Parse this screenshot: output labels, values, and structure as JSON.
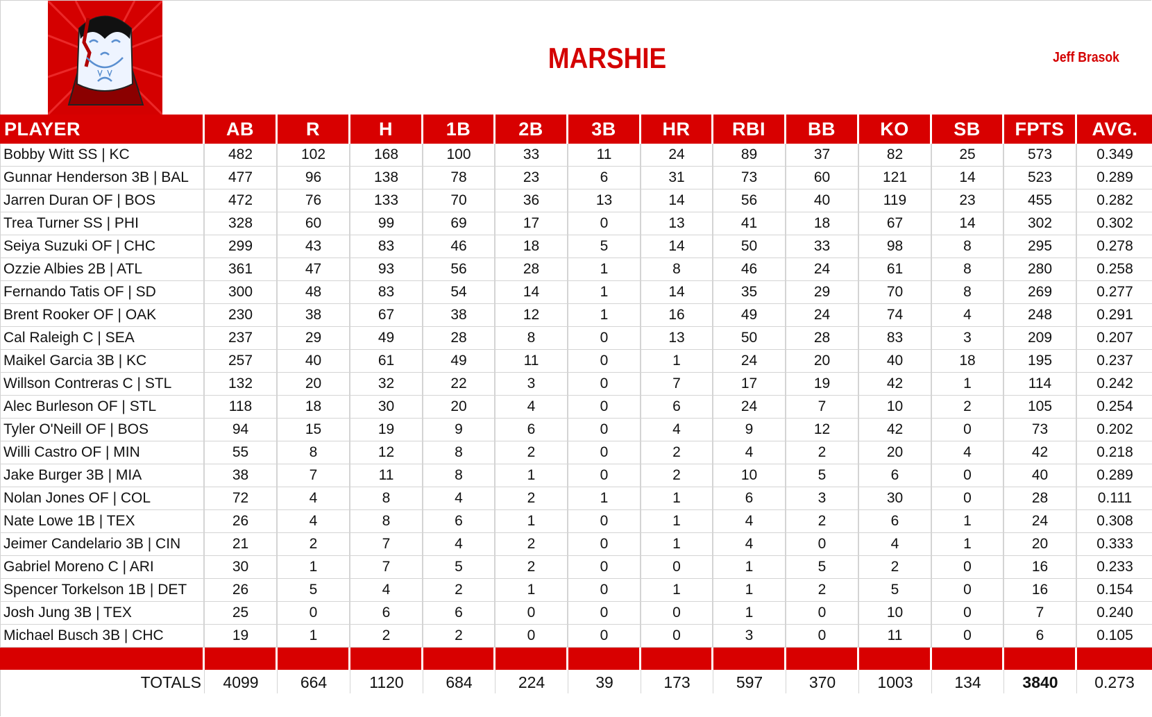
{
  "header": {
    "team_name": "MARSHIE",
    "owner_name": "Jeff Brasok",
    "logo_icon": "vampire-mascot-icon"
  },
  "colors": {
    "accent_red": "#d80000",
    "title_red": "#d40000",
    "grid_gray": "#d4d4d4"
  },
  "table": {
    "columns": [
      "PLAYER",
      "AB",
      "R",
      "H",
      "1B",
      "2B",
      "3B",
      "HR",
      "RBI",
      "BB",
      "KO",
      "SB",
      "FPTS",
      "AVG."
    ],
    "rows": [
      [
        "Bobby Witt SS | KC",
        "482",
        "102",
        "168",
        "100",
        "33",
        "11",
        "24",
        "89",
        "37",
        "82",
        "25",
        "573",
        "0.349"
      ],
      [
        "Gunnar Henderson 3B | BAL",
        "477",
        "96",
        "138",
        "78",
        "23",
        "6",
        "31",
        "73",
        "60",
        "121",
        "14",
        "523",
        "0.289"
      ],
      [
        "Jarren Duran OF | BOS",
        "472",
        "76",
        "133",
        "70",
        "36",
        "13",
        "14",
        "56",
        "40",
        "119",
        "23",
        "455",
        "0.282"
      ],
      [
        "Trea Turner SS | PHI",
        "328",
        "60",
        "99",
        "69",
        "17",
        "0",
        "13",
        "41",
        "18",
        "67",
        "14",
        "302",
        "0.302"
      ],
      [
        "Seiya Suzuki OF | CHC",
        "299",
        "43",
        "83",
        "46",
        "18",
        "5",
        "14",
        "50",
        "33",
        "98",
        "8",
        "295",
        "0.278"
      ],
      [
        "Ozzie Albies 2B | ATL",
        "361",
        "47",
        "93",
        "56",
        "28",
        "1",
        "8",
        "46",
        "24",
        "61",
        "8",
        "280",
        "0.258"
      ],
      [
        "Fernando Tatis OF | SD",
        "300",
        "48",
        "83",
        "54",
        "14",
        "1",
        "14",
        "35",
        "29",
        "70",
        "8",
        "269",
        "0.277"
      ],
      [
        "Brent Rooker OF | OAK",
        "230",
        "38",
        "67",
        "38",
        "12",
        "1",
        "16",
        "49",
        "24",
        "74",
        "4",
        "248",
        "0.291"
      ],
      [
        "Cal Raleigh C | SEA",
        "237",
        "29",
        "49",
        "28",
        "8",
        "0",
        "13",
        "50",
        "28",
        "83",
        "3",
        "209",
        "0.207"
      ],
      [
        "Maikel Garcia 3B | KC",
        "257",
        "40",
        "61",
        "49",
        "11",
        "0",
        "1",
        "24",
        "20",
        "40",
        "18",
        "195",
        "0.237"
      ],
      [
        "Willson Contreras C | STL",
        "132",
        "20",
        "32",
        "22",
        "3",
        "0",
        "7",
        "17",
        "19",
        "42",
        "1",
        "114",
        "0.242"
      ],
      [
        "Alec Burleson OF | STL",
        "118",
        "18",
        "30",
        "20",
        "4",
        "0",
        "6",
        "24",
        "7",
        "10",
        "2",
        "105",
        "0.254"
      ],
      [
        "Tyler O'Neill OF | BOS",
        "94",
        "15",
        "19",
        "9",
        "6",
        "0",
        "4",
        "9",
        "12",
        "42",
        "0",
        "73",
        "0.202"
      ],
      [
        "Willi Castro OF | MIN",
        "55",
        "8",
        "12",
        "8",
        "2",
        "0",
        "2",
        "4",
        "2",
        "20",
        "4",
        "42",
        "0.218"
      ],
      [
        "Jake Burger 3B | MIA",
        "38",
        "7",
        "11",
        "8",
        "1",
        "0",
        "2",
        "10",
        "5",
        "6",
        "0",
        "40",
        "0.289"
      ],
      [
        "Nolan Jones OF | COL",
        "72",
        "4",
        "8",
        "4",
        "2",
        "1",
        "1",
        "6",
        "3",
        "30",
        "0",
        "28",
        "0.111"
      ],
      [
        "Nate Lowe 1B | TEX",
        "26",
        "4",
        "8",
        "6",
        "1",
        "0",
        "1",
        "4",
        "2",
        "6",
        "1",
        "24",
        "0.308"
      ],
      [
        "Jeimer Candelario 3B | CIN",
        "21",
        "2",
        "7",
        "4",
        "2",
        "0",
        "1",
        "4",
        "0",
        "4",
        "1",
        "20",
        "0.333"
      ],
      [
        "Gabriel Moreno C | ARI",
        "30",
        "1",
        "7",
        "5",
        "2",
        "0",
        "0",
        "1",
        "5",
        "2",
        "0",
        "16",
        "0.233"
      ],
      [
        "Spencer Torkelson 1B | DET",
        "26",
        "5",
        "4",
        "2",
        "1",
        "0",
        "1",
        "1",
        "2",
        "5",
        "0",
        "16",
        "0.154"
      ],
      [
        "Josh Jung 3B | TEX",
        "25",
        "0",
        "6",
        "6",
        "0",
        "0",
        "0",
        "1",
        "0",
        "10",
        "0",
        "7",
        "0.240"
      ],
      [
        "Michael Busch 3B | CHC",
        "19",
        "1",
        "2",
        "2",
        "0",
        "0",
        "0",
        "3",
        "0",
        "11",
        "0",
        "6",
        "0.105"
      ]
    ],
    "totals": [
      "TOTALS",
      "4099",
      "664",
      "1120",
      "684",
      "224",
      "39",
      "173",
      "597",
      "370",
      "1003",
      "134",
      "3840",
      "0.273"
    ]
  }
}
